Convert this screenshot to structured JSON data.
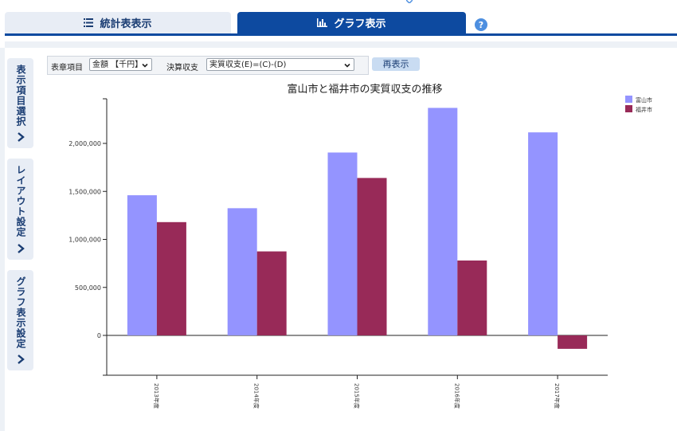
{
  "tabs": [
    {
      "label": "統計表表示",
      "icon": "list-icon"
    },
    {
      "label": "グラフ表示",
      "icon": "bar-chart-icon"
    }
  ],
  "help": {
    "label": "?"
  },
  "side_tabs": [
    {
      "label": "表示項目選択"
    },
    {
      "label": "レイアウト設定"
    },
    {
      "label": "グラフ表示設定"
    }
  ],
  "controls": {
    "item_label": "表章項目",
    "item_value": "金額 【千円】",
    "balance_label": "決算収支",
    "balance_value": "実質収支(E)=(C)-(D)",
    "redisplay": "再表示"
  },
  "colors": {
    "toyama": "#9494ff",
    "fukui": "#982a58",
    "accent": "#0d4aa0"
  },
  "chart_data": {
    "type": "bar",
    "title": "富山市と福井市の実質収支の推移",
    "xlabel": "",
    "ylabel": "",
    "categories": [
      "2013年度",
      "2014年度",
      "2015年度",
      "2016年度",
      "2017年度"
    ],
    "series": [
      {
        "name": "富山市",
        "values": [
          1460000,
          1325000,
          1905000,
          2370000,
          2115000
        ]
      },
      {
        "name": "福井市",
        "values": [
          1180000,
          875000,
          1640000,
          780000,
          -140000
        ]
      }
    ],
    "ylim": [
      -400000,
      2450000
    ],
    "yticks": [
      0,
      500000,
      1000000,
      1500000,
      2000000
    ],
    "ytick_labels": [
      "0",
      "500,000",
      "1,000,000",
      "1,500,000",
      "2,000,000"
    ],
    "legend": "top-right",
    "grid": false
  }
}
